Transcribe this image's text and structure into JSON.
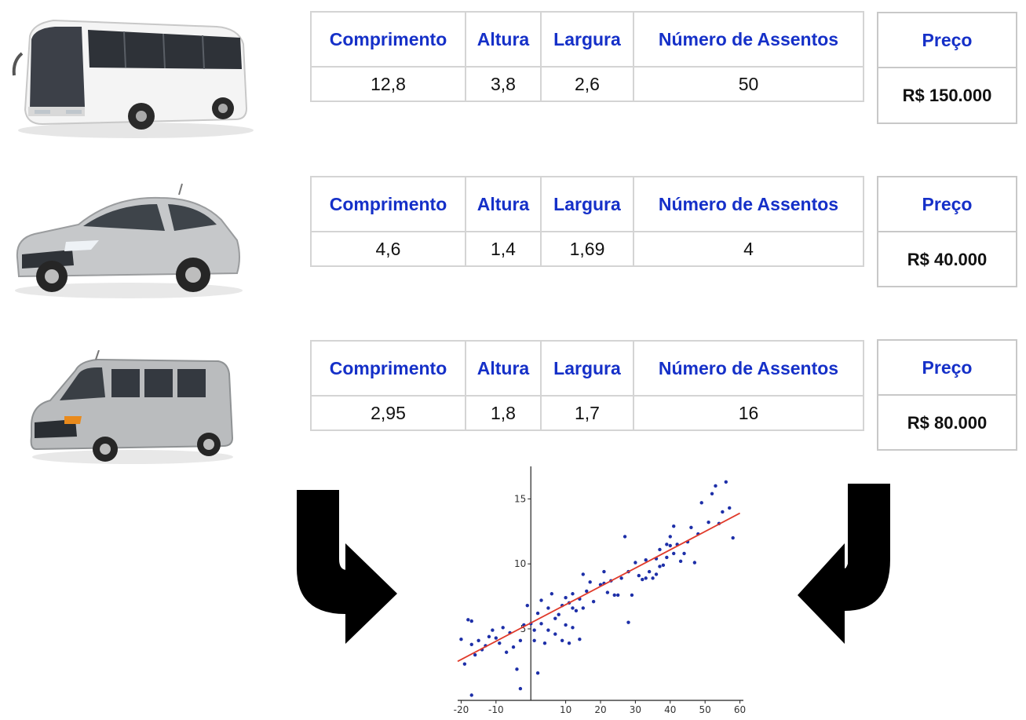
{
  "vehicles": [
    {
      "icon": "bus-icon",
      "color": "#f2f2f2",
      "headers": [
        "Comprimento",
        "Altura",
        "Largura",
        "Número de Assentos"
      ],
      "values": [
        "12,8",
        "3,8",
        "2,6",
        "50"
      ],
      "price_label": "Preço",
      "price_value": "R$ 150.000"
    },
    {
      "icon": "car-icon",
      "color": "#c4c6c8",
      "headers": [
        "Comprimento",
        "Altura",
        "Largura",
        "Número de Assentos"
      ],
      "values": [
        "4,6",
        "1,4",
        "1,69",
        "4"
      ],
      "price_label": "Preço",
      "price_value": "R$ 40.000"
    },
    {
      "icon": "van-icon",
      "color": "#b8babc",
      "headers": [
        "Comprimento",
        "Altura",
        "Largura",
        "Número de Assentos"
      ],
      "values": [
        "2,95",
        "1,8",
        "1,7",
        "16"
      ],
      "price_label": "Preço",
      "price_value": "R$ 80.000"
    }
  ],
  "colors": {
    "header_text": "#1530c8",
    "point": "#1d2fa8",
    "regression_line": "#e03a2a",
    "arrow": "#000000"
  },
  "arrows": [
    "curved-arrow-right-icon",
    "curved-arrow-left-icon"
  ],
  "chart_data": {
    "type": "scatter",
    "xlim": [
      -21,
      61
    ],
    "ylim": [
      -0.5,
      17.5
    ],
    "x_ticks": [
      -20,
      -10,
      10,
      20,
      30,
      40,
      50,
      60
    ],
    "y_ticks": [
      5,
      10,
      15
    ],
    "grid": false,
    "points": [
      [
        -20,
        4.2
      ],
      [
        -19,
        2.3
      ],
      [
        -18,
        5.7
      ],
      [
        -17,
        5.6
      ],
      [
        -17,
        3.8
      ],
      [
        -16,
        3.0
      ],
      [
        -15,
        4.1
      ],
      [
        -14,
        3.4
      ],
      [
        -13,
        3.7
      ],
      [
        -12,
        4.4
      ],
      [
        -11,
        4.9
      ],
      [
        -10,
        4.3
      ],
      [
        -9,
        3.9
      ],
      [
        -8,
        5.1
      ],
      [
        -7,
        3.2
      ],
      [
        -6,
        4.7
      ],
      [
        -5,
        3.6
      ],
      [
        -4,
        1.9
      ],
      [
        -3,
        4.1
      ],
      [
        -2,
        5.3
      ],
      [
        -1,
        6.8
      ],
      [
        0,
        5.4
      ],
      [
        1,
        4.9
      ],
      [
        1,
        4.1
      ],
      [
        2,
        6.2
      ],
      [
        3,
        5.4
      ],
      [
        3,
        7.2
      ],
      [
        4,
        3.9
      ],
      [
        5,
        6.6
      ],
      [
        5,
        4.9
      ],
      [
        6,
        7.7
      ],
      [
        7,
        5.8
      ],
      [
        7,
        4.6
      ],
      [
        8,
        6.1
      ],
      [
        9,
        6.8
      ],
      [
        9,
        4.1
      ],
      [
        10,
        7.4
      ],
      [
        10,
        5.3
      ],
      [
        11,
        7.0
      ],
      [
        11,
        3.9
      ],
      [
        12,
        7.7
      ],
      [
        12,
        5.1
      ],
      [
        13,
        6.4
      ],
      [
        14,
        7.3
      ],
      [
        14,
        4.2
      ],
      [
        15,
        9.2
      ],
      [
        15,
        6.6
      ],
      [
        16,
        7.9
      ],
      [
        17,
        8.6
      ],
      [
        18,
        7.1
      ],
      [
        20,
        8.4
      ],
      [
        21,
        8.5
      ],
      [
        22,
        7.8
      ],
      [
        23,
        8.7
      ],
      [
        24,
        7.6
      ],
      [
        25,
        7.6
      ],
      [
        26,
        8.9
      ],
      [
        27,
        12.1
      ],
      [
        28,
        9.4
      ],
      [
        28,
        5.5
      ],
      [
        29,
        7.6
      ],
      [
        30,
        10.1
      ],
      [
        31,
        9.1
      ],
      [
        32,
        8.8
      ],
      [
        33,
        10.3
      ],
      [
        33,
        8.9
      ],
      [
        34,
        9.4
      ],
      [
        35,
        8.9
      ],
      [
        36,
        10.4
      ],
      [
        36,
        9.2
      ],
      [
        37,
        11.1
      ],
      [
        37,
        9.8
      ],
      [
        38,
        9.9
      ],
      [
        39,
        11.5
      ],
      [
        39,
        10.5
      ],
      [
        40,
        11.4
      ],
      [
        41,
        10.8
      ],
      [
        41,
        12.9
      ],
      [
        42,
        11.5
      ],
      [
        43,
        10.2
      ],
      [
        44,
        10.8
      ],
      [
        45,
        11.7
      ],
      [
        46,
        12.8
      ],
      [
        47,
        10.1
      ],
      [
        48,
        12.3
      ],
      [
        49,
        14.7
      ],
      [
        51,
        13.2
      ],
      [
        52,
        15.4
      ],
      [
        53,
        16.0
      ],
      [
        54,
        13.1
      ],
      [
        55,
        14.0
      ],
      [
        56,
        16.3
      ],
      [
        57,
        14.3
      ],
      [
        58,
        12.0
      ],
      [
        -17,
        -0.1
      ],
      [
        -3,
        0.4
      ],
      [
        2,
        1.6
      ],
      [
        40,
        12.1
      ],
      [
        21,
        9.4
      ],
      [
        12,
        6.6
      ]
    ],
    "regression_line": [
      [
        -21,
        2.5
      ],
      [
        60,
        13.9
      ]
    ]
  }
}
